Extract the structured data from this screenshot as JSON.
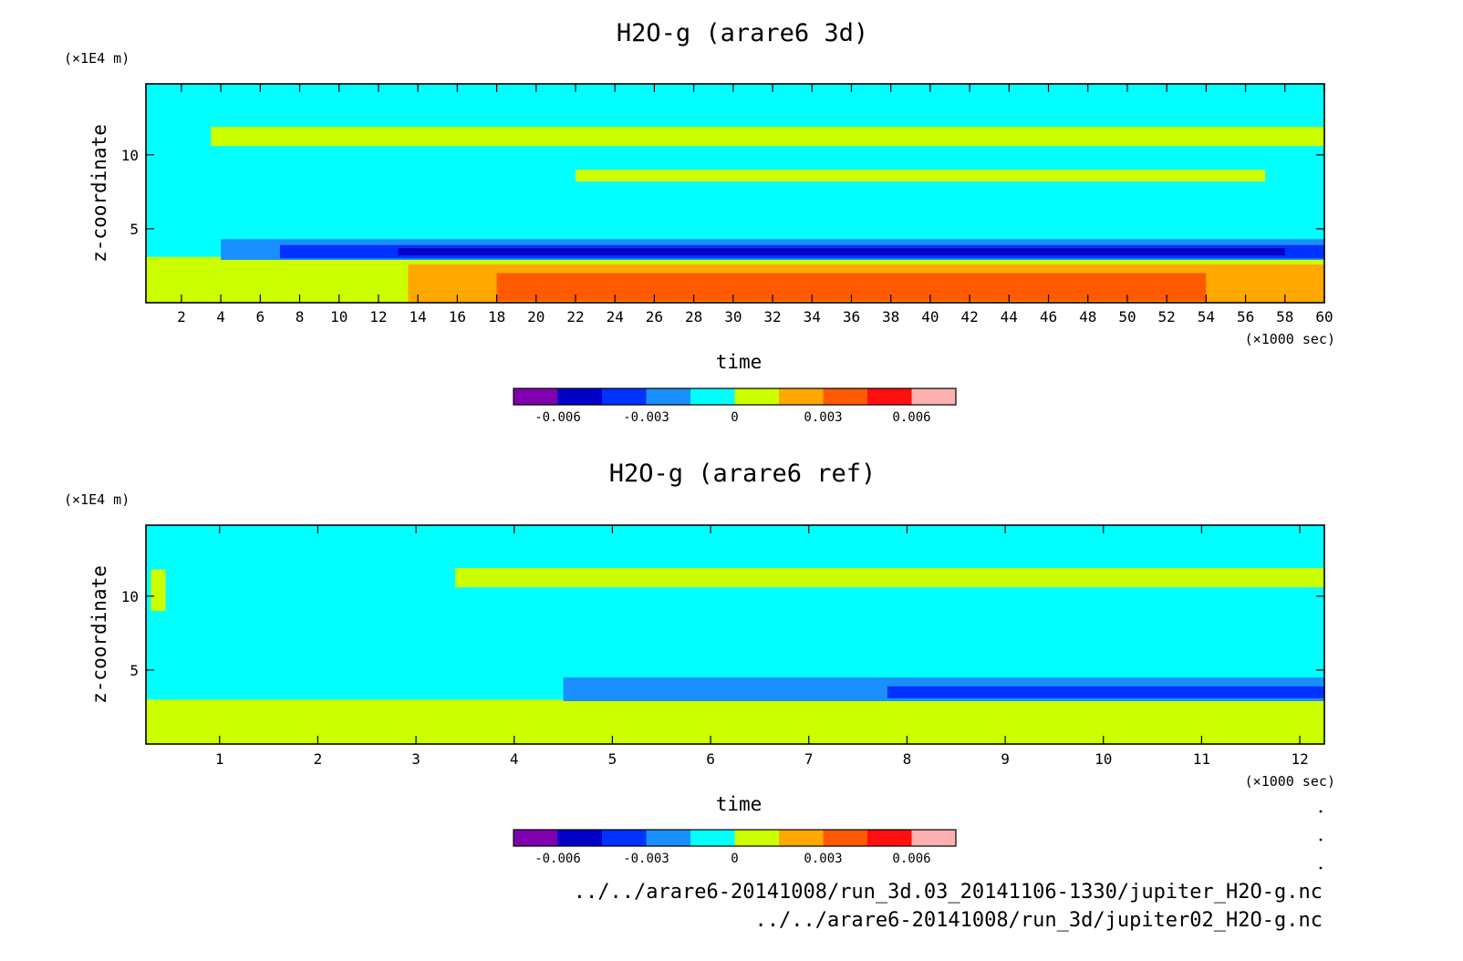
{
  "colors": {
    "bins": [
      "#8000b0",
      "#0000c8",
      "#0033ff",
      "#1a90ff",
      "#00ffff",
      "#ccff00",
      "#ffa800",
      "#ff5a00",
      "#ff1010",
      "#ffb0b0"
    ],
    "axis": "#000000",
    "background": "#ffffff"
  },
  "files": {
    "line1": "../../arare6-20141008/run_3d.03_20141106-1330/jupiter_H2O-g.nc",
    "line2": "../../arare6-20141008/run_3d/jupiter02_H2O-g.nc"
  },
  "chart_data": [
    {
      "type": "heatmap",
      "title": "H2O-g (arare6 3d)",
      "xlabel": "time",
      "ylabel": "z-coordinate",
      "x_unit": "(×1000 sec)",
      "y_unit": "(×1E4 m)",
      "xlim": [
        0.2,
        60
      ],
      "ylim": [
        0,
        14.8
      ],
      "x_ticks": [
        2,
        4,
        6,
        8,
        10,
        12,
        14,
        16,
        18,
        20,
        22,
        24,
        26,
        28,
        30,
        32,
        34,
        36,
        38,
        40,
        42,
        44,
        46,
        48,
        50,
        52,
        54,
        56,
        58,
        60
      ],
      "y_ticks": [
        5,
        10
      ],
      "colorbar": {
        "levels": [
          -0.0075,
          -0.006,
          -0.0045,
          -0.003,
          -0.0015,
          0,
          0.0015,
          0.003,
          0.0045,
          0.006,
          0.0075
        ],
        "tick_values": [
          -0.006,
          -0.003,
          0,
          0.003,
          0.006
        ],
        "tick_labels": [
          "-0.006",
          "-0.003",
          "0",
          "0.003",
          "0.006"
        ]
      },
      "regions": [
        {
          "name": "near-surface-moist",
          "bin": 5,
          "x": [
            0.2,
            60
          ],
          "z": [
            0,
            3.1
          ]
        },
        {
          "name": "warm-layer",
          "bin": 6,
          "x": [
            13.5,
            60
          ],
          "z": [
            0.05,
            2.6
          ]
        },
        {
          "name": "strong-warm-patches",
          "bin": 7,
          "x": [
            18,
            54
          ],
          "z": [
            0.1,
            2.0
          ]
        },
        {
          "name": "dry-band-outer",
          "bin": 3,
          "x": [
            4,
            60
          ],
          "z": [
            2.9,
            4.3
          ]
        },
        {
          "name": "dry-band-mid",
          "bin": 2,
          "x": [
            7,
            60
          ],
          "z": [
            3.0,
            3.9
          ]
        },
        {
          "name": "dry-band-core",
          "bin": 1,
          "x": [
            13,
            58
          ],
          "z": [
            3.2,
            3.7
          ]
        },
        {
          "name": "upper-moist-layer",
          "bin": 5,
          "x": [
            3.5,
            60
          ],
          "z": [
            10.6,
            11.9
          ]
        },
        {
          "name": "upper-moist-patches",
          "bin": 5,
          "x": [
            22,
            57
          ],
          "z": [
            8.2,
            9.0
          ]
        }
      ]
    },
    {
      "type": "heatmap",
      "title": "H2O-g (arare6 ref)",
      "xlabel": "time",
      "ylabel": "z-coordinate",
      "x_unit": "(×1000 sec)",
      "y_unit": "(×1E4 m)",
      "xlim": [
        0.25,
        12.25
      ],
      "ylim": [
        0,
        14.8
      ],
      "x_ticks": [
        1,
        2,
        3,
        4,
        5,
        6,
        7,
        8,
        9,
        10,
        11,
        12
      ],
      "y_ticks": [
        5,
        10
      ],
      "colorbar": {
        "levels": [
          -0.0075,
          -0.006,
          -0.0045,
          -0.003,
          -0.0015,
          0,
          0.0015,
          0.003,
          0.0045,
          0.006,
          0.0075
        ],
        "tick_values": [
          -0.006,
          -0.003,
          0,
          0.003,
          0.006
        ],
        "tick_labels": [
          "-0.006",
          "-0.003",
          "0",
          "0.003",
          "0.006"
        ]
      },
      "regions": [
        {
          "name": "near-surface-moist",
          "bin": 5,
          "x": [
            0.25,
            12.25
          ],
          "z": [
            0,
            3.0
          ]
        },
        {
          "name": "dry-band-outer",
          "bin": 3,
          "x": [
            4.5,
            12.25
          ],
          "z": [
            2.9,
            4.5
          ]
        },
        {
          "name": "dry-band-core",
          "bin": 2,
          "x": [
            7.8,
            12.25
          ],
          "z": [
            3.1,
            3.9
          ]
        },
        {
          "name": "upper-moist-layer",
          "bin": 5,
          "x": [
            3.4,
            12.25
          ],
          "z": [
            10.6,
            11.9
          ]
        },
        {
          "name": "early-upper-moist",
          "bin": 5,
          "x": [
            0.3,
            0.45
          ],
          "z": [
            9.0,
            11.8
          ]
        }
      ]
    }
  ]
}
